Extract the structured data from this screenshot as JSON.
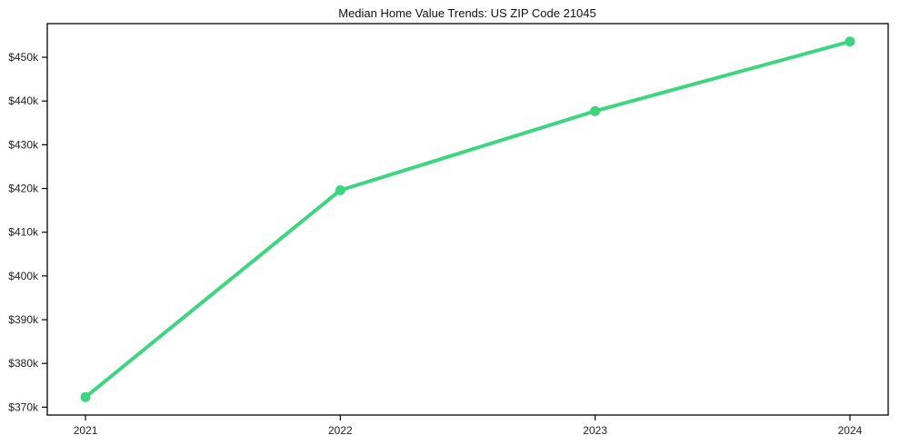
{
  "chart_data": {
    "type": "line",
    "title": "Median Home Value Trends: US ZIP Code 21045",
    "x": [
      2021,
      2022,
      2023,
      2024
    ],
    "series": [
      {
        "values": [
          372300,
          419600,
          437700,
          453600
        ],
        "color": "#3dd580",
        "marker": "circle"
      }
    ],
    "xlabel": "",
    "ylabel": "",
    "x_tick_labels": [
      "2021",
      "2022",
      "2023",
      "2024"
    ],
    "y_ticks": [
      370000,
      380000,
      390000,
      400000,
      410000,
      420000,
      430000,
      440000,
      450000
    ],
    "y_tick_labels": [
      "$370k",
      "$380k",
      "$390k",
      "$400k",
      "$410k",
      "$420k",
      "$430k",
      "$440k",
      "$450k"
    ],
    "xlim": [
      2020.85,
      2024.15
    ],
    "ylim": [
      368200,
      457700
    ],
    "grid": false,
    "legend": "none",
    "styles": {
      "background": "#ffffff",
      "frame_color": "#000000",
      "tick_color": "#000000",
      "text_color": "#222222"
    }
  }
}
